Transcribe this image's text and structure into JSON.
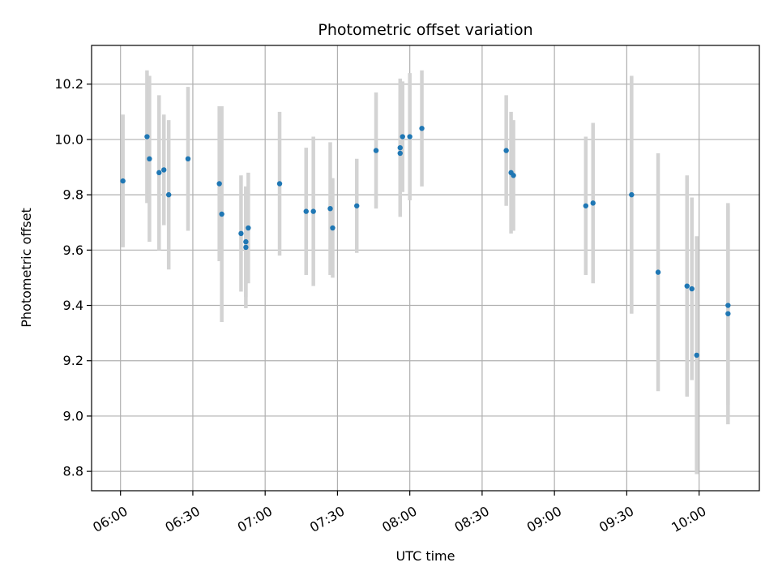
{
  "chart_data": {
    "type": "scatter",
    "title": "Photometric offset variation",
    "xlabel": "UTC time",
    "ylabel": "Photometric offset",
    "x_axis": {
      "unit": "minutes-after-midnight-UTC",
      "range": [
        "05:48",
        "10:25"
      ],
      "ticks": [
        "06:00",
        "06:30",
        "07:00",
        "07:30",
        "08:00",
        "08:30",
        "09:00",
        "09:30",
        "10:00"
      ]
    },
    "y_axis": {
      "range": [
        8.73,
        10.34
      ],
      "ticks": [
        "8.8",
        "9.0",
        "9.2",
        "9.4",
        "9.6",
        "9.8",
        "10.0",
        "10.2"
      ]
    },
    "grid": true,
    "legend": "none",
    "colors": {
      "point": "#1f77b4",
      "errorbar": "#d3d3d3"
    },
    "points": [
      {
        "time": "06:01",
        "y": 9.85,
        "err": 0.24
      },
      {
        "time": "06:11",
        "y": 10.01,
        "err": 0.24
      },
      {
        "time": "06:12",
        "y": 9.93,
        "err": 0.3
      },
      {
        "time": "06:16",
        "y": 9.88,
        "err": 0.28
      },
      {
        "time": "06:18",
        "y": 9.89,
        "err": 0.2
      },
      {
        "time": "06:20",
        "y": 9.8,
        "err": 0.27
      },
      {
        "time": "06:28",
        "y": 9.93,
        "err": 0.26
      },
      {
        "time": "06:41",
        "y": 9.84,
        "err": 0.28
      },
      {
        "time": "06:42",
        "y": 9.73,
        "err": 0.39
      },
      {
        "time": "06:50",
        "y": 9.66,
        "err": 0.21
      },
      {
        "time": "06:52",
        "y": 9.61,
        "err": 0.22
      },
      {
        "time": "06:52",
        "y": 9.63,
        "err": 0.2
      },
      {
        "time": "06:53",
        "y": 9.68,
        "err": 0.2
      },
      {
        "time": "07:06",
        "y": 9.84,
        "err": 0.26
      },
      {
        "time": "07:17",
        "y": 9.74,
        "err": 0.23
      },
      {
        "time": "07:20",
        "y": 9.74,
        "err": 0.27
      },
      {
        "time": "07:27",
        "y": 9.75,
        "err": 0.24
      },
      {
        "time": "07:28",
        "y": 9.68,
        "err": 0.18
      },
      {
        "time": "07:38",
        "y": 9.76,
        "err": 0.17
      },
      {
        "time": "07:46",
        "y": 9.96,
        "err": 0.21
      },
      {
        "time": "07:56",
        "y": 9.95,
        "err": 0.22
      },
      {
        "time": "07:56",
        "y": 9.97,
        "err": 0.25
      },
      {
        "time": "07:57",
        "y": 10.01,
        "err": 0.2
      },
      {
        "time": "08:00",
        "y": 10.01,
        "err": 0.23
      },
      {
        "time": "08:05",
        "y": 10.04,
        "err": 0.21
      },
      {
        "time": "08:40",
        "y": 9.96,
        "err": 0.2
      },
      {
        "time": "08:42",
        "y": 9.88,
        "err": 0.22
      },
      {
        "time": "08:43",
        "y": 9.87,
        "err": 0.2
      },
      {
        "time": "09:13",
        "y": 9.76,
        "err": 0.25
      },
      {
        "time": "09:16",
        "y": 9.77,
        "err": 0.29
      },
      {
        "time": "09:32",
        "y": 9.8,
        "err": 0.43
      },
      {
        "time": "09:43",
        "y": 9.52,
        "err": 0.43
      },
      {
        "time": "09:55",
        "y": 9.47,
        "err": 0.4
      },
      {
        "time": "09:57",
        "y": 9.46,
        "err": 0.33
      },
      {
        "time": "09:59",
        "y": 9.22,
        "err": 0.43
      },
      {
        "time": "10:12",
        "y": 9.4,
        "err": 0.36
      },
      {
        "time": "10:12",
        "y": 9.37,
        "err": 0.4
      }
    ]
  }
}
